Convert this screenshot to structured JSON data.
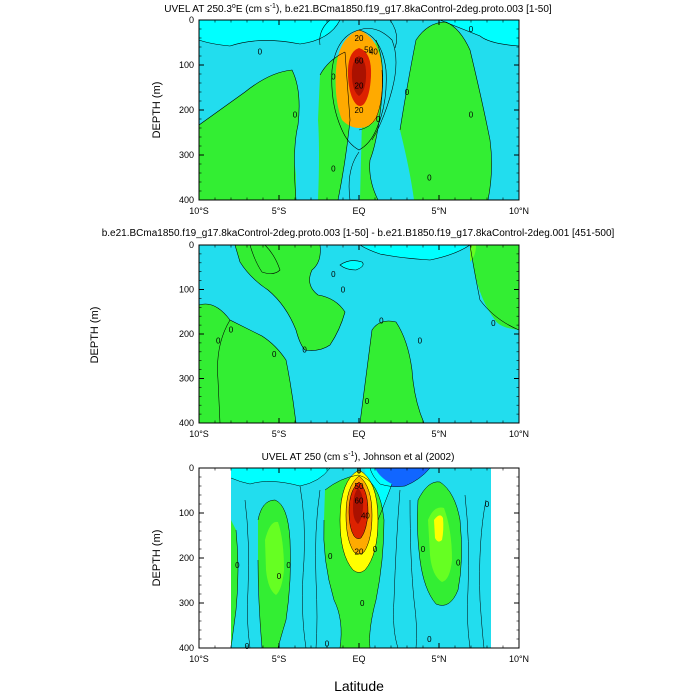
{
  "figure": {
    "xlabel": "Latitude",
    "colors": {
      "cyan": "#22ddee",
      "ltcyan": "#00ffff",
      "green": "#33ee33",
      "lgreen": "#66ff22",
      "yellow": "#ffff00",
      "orange": "#ffaa00",
      "red": "#dd2200",
      "dkred": "#aa1100",
      "blue": "#1166ff",
      "white": "#ffffff"
    }
  },
  "chart_data": [
    {
      "type": "contour",
      "title_parts": [
        "UVEL AT 250.3",
        "o",
        "E (cm s",
        "-1",
        "), b.e21.BCma1850.f19_g17.8kaControl-2deg.proto.003 [1-50]"
      ],
      "ylabel": "DEPTH (m)",
      "xlim": [
        -10,
        10
      ],
      "ylim": [
        0,
        400
      ],
      "xticks": [
        "10°S",
        "5°S",
        "EQ",
        "5°N",
        "10°N"
      ],
      "yticks": [
        "0",
        "100",
        "200",
        "300",
        "400"
      ],
      "contour_labels": [
        {
          "text": "20",
          "lat": 0,
          "depth": 40
        },
        {
          "text": "50",
          "lat": 0.6,
          "depth": 65
        },
        {
          "text": "40",
          "lat": 0.9,
          "depth": 70
        },
        {
          "text": "60",
          "lat": 0,
          "depth": 90
        },
        {
          "text": "20",
          "lat": 0,
          "depth": 145
        },
        {
          "text": "20",
          "lat": 0,
          "depth": 200
        },
        {
          "text": "0",
          "lat": -6.2,
          "depth": 70
        },
        {
          "text": "0",
          "lat": -4,
          "depth": 210
        },
        {
          "text": "0",
          "lat": -1.6,
          "depth": 125
        },
        {
          "text": "0",
          "lat": -1.6,
          "depth": 330
        },
        {
          "text": "0",
          "lat": 1.2,
          "depth": 220
        },
        {
          "text": "0",
          "lat": 3,
          "depth": 160
        },
        {
          "text": "0",
          "lat": 4.4,
          "depth": 350
        },
        {
          "text": "0",
          "lat": 7,
          "depth": 20
        },
        {
          "text": "0",
          "lat": 7,
          "depth": 210
        }
      ]
    },
    {
      "type": "contour",
      "title_parts": [
        "b.e21.BCma1850.f19_g17.8kaControl-2deg.proto.003 [1-50] - b.e21.B1850.f19_g17.8kaControl-2deg.001 [451-500]"
      ],
      "ylabel": "DEPTH (m)",
      "xlim": [
        -10,
        10
      ],
      "ylim": [
        0,
        400
      ],
      "xticks": [
        "10°S",
        "5°S",
        "EQ",
        "5°N",
        "10°N"
      ],
      "yticks": [
        "0",
        "100",
        "200",
        "300",
        "400"
      ],
      "contour_labels": [
        {
          "text": "0",
          "lat": -1.6,
          "depth": 65
        },
        {
          "text": "0",
          "lat": -1,
          "depth": 100
        },
        {
          "text": "0",
          "lat": -8,
          "depth": 190
        },
        {
          "text": "0",
          "lat": -8.8,
          "depth": 215
        },
        {
          "text": "0",
          "lat": -5.3,
          "depth": 245
        },
        {
          "text": "0",
          "lat": -3.4,
          "depth": 235
        },
        {
          "text": "0",
          "lat": 1.4,
          "depth": 170
        },
        {
          "text": "0",
          "lat": 3.8,
          "depth": 215
        },
        {
          "text": "0",
          "lat": 0.5,
          "depth": 350
        },
        {
          "text": "0",
          "lat": 8.4,
          "depth": 175
        }
      ]
    },
    {
      "type": "contour",
      "title_parts": [
        "UVEL AT 250 (cm s",
        "-1",
        "), Johnson et al (2002)"
      ],
      "ylabel": "DEPTH (m)",
      "xlim": [
        -10,
        10
      ],
      "ylim": [
        0,
        400
      ],
      "xticks": [
        "10°S",
        "5°S",
        "EQ",
        "5°N",
        "10°N"
      ],
      "yticks": [
        "0",
        "100",
        "200",
        "300",
        "400"
      ],
      "data_lat_range": [
        -8,
        8.2
      ],
      "contour_labels": [
        {
          "text": "0",
          "lat": 0,
          "depth": 5
        },
        {
          "text": "50",
          "lat": 0,
          "depth": 40
        },
        {
          "text": "60",
          "lat": 0,
          "depth": 72
        },
        {
          "text": "40",
          "lat": 0.4,
          "depth": 105
        },
        {
          "text": "20",
          "lat": 0,
          "depth": 185
        },
        {
          "text": "0",
          "lat": -1.8,
          "depth": 195
        },
        {
          "text": "0",
          "lat": 1,
          "depth": 180
        },
        {
          "text": "0",
          "lat": -7.6,
          "depth": 215
        },
        {
          "text": "0",
          "lat": -5,
          "depth": 240
        },
        {
          "text": "0",
          "lat": -4.4,
          "depth": 215
        },
        {
          "text": "0",
          "lat": 4,
          "depth": 180
        },
        {
          "text": "0",
          "lat": 6.2,
          "depth": 210
        },
        {
          "text": "0",
          "lat": 8,
          "depth": 80
        },
        {
          "text": "0",
          "lat": 0.2,
          "depth": 300
        },
        {
          "text": "0",
          "lat": -2,
          "depth": 390
        },
        {
          "text": "0",
          "lat": 4.4,
          "depth": 380
        },
        {
          "text": "0",
          "lat": -7,
          "depth": 395
        }
      ]
    }
  ]
}
